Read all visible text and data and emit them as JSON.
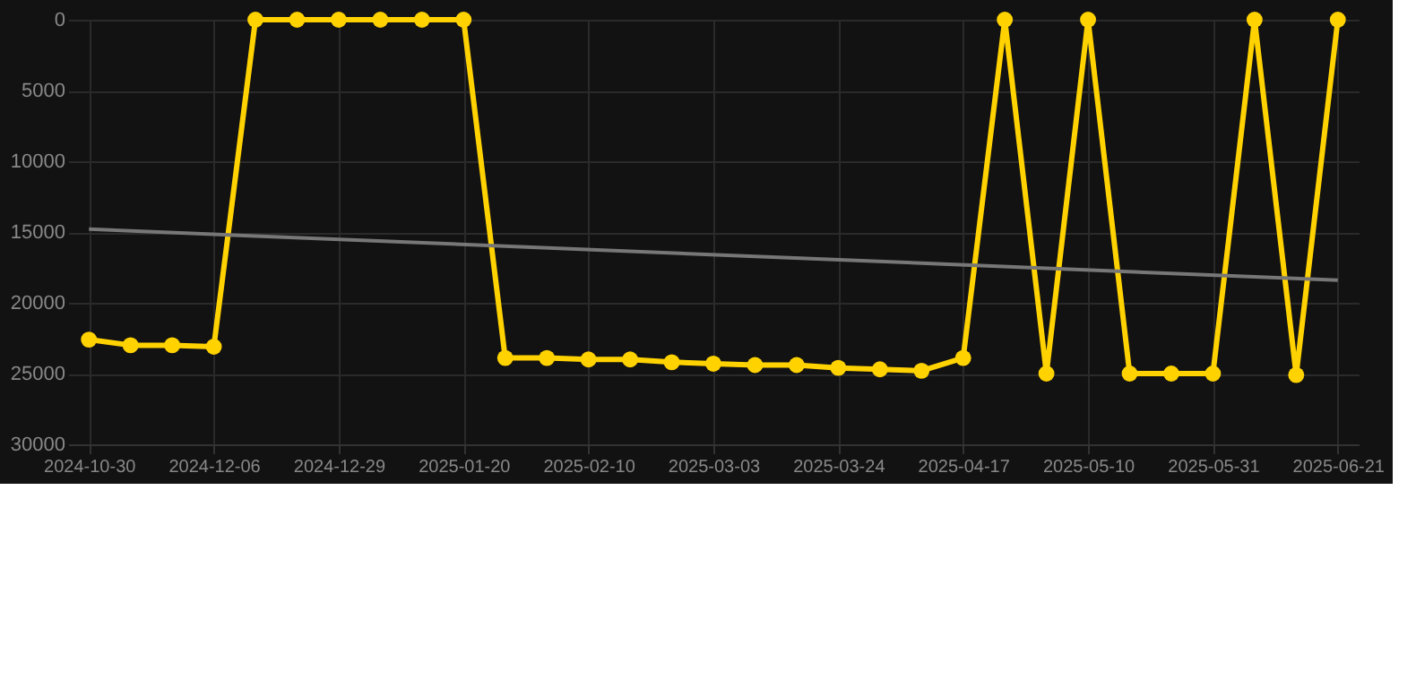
{
  "chart_data": {
    "type": "line",
    "categories": [
      "2024-10-30",
      null,
      null,
      "2024-12-06",
      null,
      null,
      "2024-12-29",
      null,
      null,
      "2025-01-20",
      null,
      null,
      "2025-02-10",
      null,
      null,
      "2025-03-03",
      null,
      null,
      "2025-03-24",
      null,
      null,
      "2025-04-17",
      null,
      null,
      "2025-05-10",
      null,
      null,
      "2025-05-31",
      null,
      null,
      "2025-06-21"
    ],
    "series": [
      {
        "color": "#ffd200",
        "marker": "circle",
        "values": [
          22600,
          23000,
          23000,
          23100,
          0,
          0,
          0,
          0,
          0,
          0,
          23900,
          23900,
          24000,
          24000,
          24200,
          24300,
          24400,
          24400,
          24600,
          24700,
          24800,
          23900,
          0,
          25000,
          0,
          25000,
          25000,
          25000,
          0,
          25100,
          0
        ]
      },
      {
        "type": "line",
        "color": "#777777",
        "marker": "none",
        "values": [
          14800,
          null,
          null,
          null,
          null,
          null,
          null,
          null,
          null,
          null,
          null,
          null,
          null,
          null,
          null,
          null,
          null,
          null,
          null,
          null,
          null,
          null,
          null,
          null,
          null,
          null,
          null,
          null,
          null,
          null,
          18400
        ]
      }
    ],
    "ylim": [
      30000,
      0
    ],
    "yticks": [
      0,
      5000,
      10000,
      15000,
      20000,
      25000,
      30000
    ],
    "grid": true,
    "line_style": "solid"
  }
}
